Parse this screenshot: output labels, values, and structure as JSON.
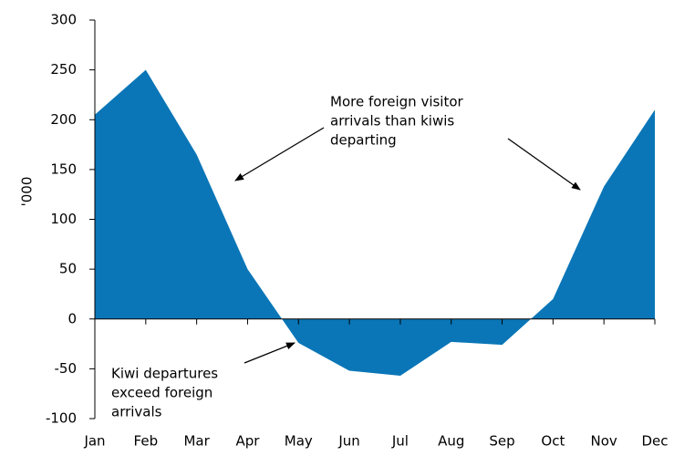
{
  "chart_data": {
    "type": "area",
    "y_label": "'000",
    "categories": [
      "Jan",
      "Feb",
      "Mar",
      "Apr",
      "May",
      "Jun",
      "Jul",
      "Aug",
      "Sep",
      "Oct",
      "Nov",
      "Dec"
    ],
    "values": [
      205,
      250,
      165,
      50,
      -24,
      -52,
      -57,
      -23,
      -26,
      20,
      133,
      210
    ],
    "color": "#0a76b7",
    "ylim": [
      -100,
      300
    ],
    "yticks": [
      -100,
      -50,
      0,
      50,
      100,
      150,
      200,
      250,
      300
    ],
    "annotations": [
      {
        "lines": [
          "More foreign visitor",
          "arrivals than kiwis",
          "departing"
        ]
      },
      {
        "lines": [
          "Kiwi departures",
          "exceed foreign",
          "arrivals"
        ]
      }
    ]
  }
}
